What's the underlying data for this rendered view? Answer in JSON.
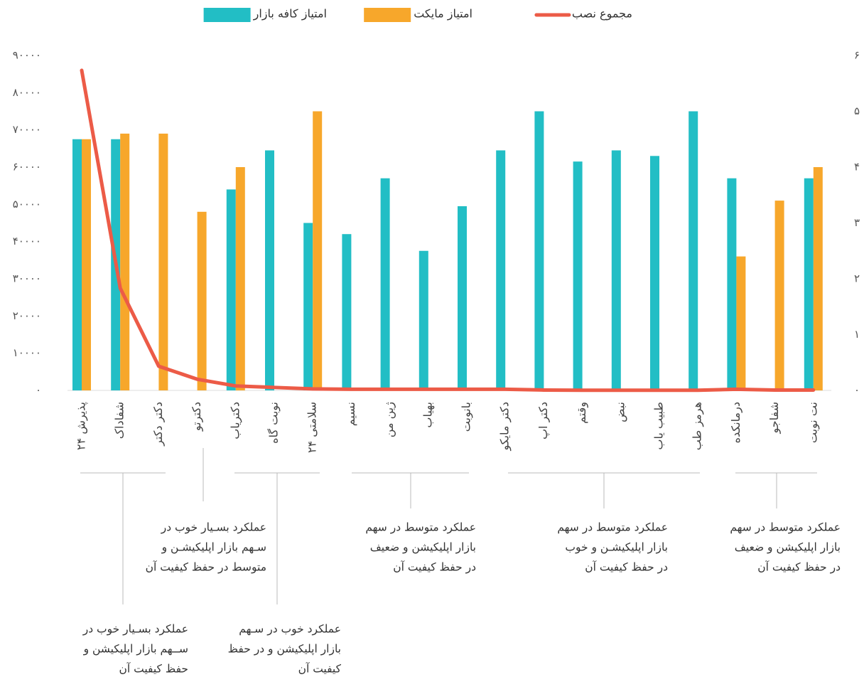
{
  "chart_data": {
    "type": "bar_line",
    "categories": [
      "پذیرش ۲۴",
      "شفاداک",
      "دکتر دکتر",
      "دکترتو",
      "دکتریاب",
      "نوبت گاه",
      "سلامتی ۲۴",
      "نسیم",
      "ژین من",
      "بهیاب",
      "بانوبت",
      "دکتر مایکو",
      "دکتر اپ",
      "وقتم",
      "نبض",
      "طبیب یاب",
      "هرمز طب",
      "درمانکده",
      "شفاجو",
      "نت نوبت"
    ],
    "series": [
      {
        "name": "امتیاز کافه بازار",
        "type": "bar",
        "axis": "y2",
        "color": "#22bec5",
        "values": [
          4.5,
          4.5,
          null,
          null,
          3.6,
          4.3,
          3.0,
          2.8,
          3.8,
          2.5,
          3.3,
          4.3,
          5.0,
          4.1,
          4.3,
          4.2,
          5.0,
          3.8,
          null,
          3.8
        ]
      },
      {
        "name": "امتیاز مایکت",
        "type": "bar",
        "axis": "y2",
        "color": "#f7a72b",
        "values": [
          4.5,
          4.6,
          4.6,
          3.2,
          4.0,
          null,
          5.0,
          null,
          null,
          null,
          null,
          null,
          null,
          null,
          null,
          null,
          null,
          2.4,
          3.4,
          4.0
        ]
      },
      {
        "name": "مجموع نصب",
        "type": "line",
        "color": "#ec5b47",
        "values": [
          86000,
          27500,
          6500,
          3000,
          1200,
          800,
          400,
          300,
          300,
          300,
          300,
          300,
          100,
          50,
          50,
          50,
          50,
          300,
          100,
          100
        ]
      }
    ],
    "ylim": [
      0,
      90000
    ],
    "yticks": [
      {
        "value": 0,
        "label": "۰"
      },
      {
        "value": 10000,
        "label": "۱۰۰۰۰"
      },
      {
        "value": 20000,
        "label": "۲۰۰۰۰"
      },
      {
        "value": 30000,
        "label": "۳۰۰۰۰"
      },
      {
        "value": 40000,
        "label": "۴۰۰۰۰"
      },
      {
        "value": 50000,
        "label": "۵۰۰۰۰"
      },
      {
        "value": 60000,
        "label": "۶۰۰۰۰"
      },
      {
        "value": 70000,
        "label": "۷۰۰۰۰"
      },
      {
        "value": 80000,
        "label": "۸۰۰۰۰"
      },
      {
        "value": 90000,
        "label": "۹۰۰۰۰"
      }
    ],
    "y2lim": [
      0,
      6
    ],
    "y2ticks": [
      {
        "value": 0,
        "label": "۰"
      },
      {
        "value": 1,
        "label": "۱"
      },
      {
        "value": 2,
        "label": "۲"
      },
      {
        "value": 3,
        "label": "۳"
      },
      {
        "value": 4,
        "label": "۴"
      },
      {
        "value": 5,
        "label": "۵"
      },
      {
        "value": 6,
        "label": "۶"
      }
    ],
    "legend": "top",
    "annotations": [
      {
        "lines": [
          "عملکرد بسـیار خوب در",
          "ســهم بازار اپلیکیشن و",
          "حفظ کیفیت آن"
        ]
      },
      {
        "lines": [
          "عملکرد بسـیار خوب در",
          "سـهم بازار اپلیکیشـن و",
          "متوسط در حفظ کیفیت آن"
        ]
      },
      {
        "lines": [
          "عملکرد خوب در سـهم",
          "بازار اپلیکیشن و در حفظ",
          "کیفیت آن"
        ]
      },
      {
        "lines": [
          "عملکرد متوسط در سهم",
          "بازار اپلیکیشن و ضعیف",
          "در حفظ کیفیت آن"
        ]
      },
      {
        "lines": [
          "عملکرد متوسط در سهم",
          "بازار اپلیکیشـن و خوب",
          "در حفظ کیفیت آن"
        ]
      },
      {
        "lines": [
          "عملکرد متوسط در سهم",
          "بازار اپلیکیشن و ضعیف",
          "در حفظ کیفیت آن"
        ]
      }
    ]
  }
}
